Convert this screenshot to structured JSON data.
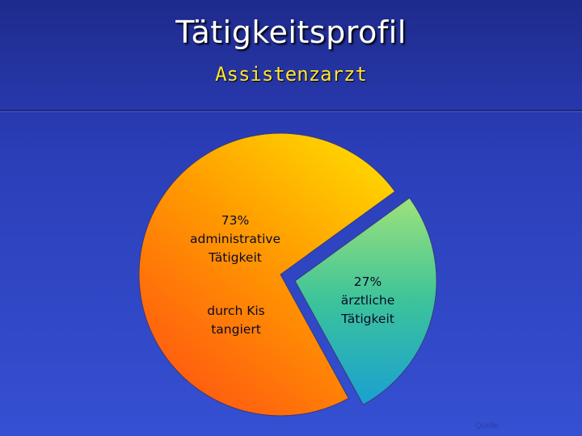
{
  "title": "Tätigkeitsprofil",
  "subtitle": "Assistenzarzt",
  "source": "Quelle",
  "chart_data": {
    "type": "pie",
    "slices": [
      {
        "label_lines": [
          "73%",
          "administrative",
          "Tätigkeit"
        ],
        "value": 73,
        "percent": "73%",
        "color": "#ff8f00"
      },
      {
        "label_lines": [
          "27%",
          "ärztliche",
          "Tätigkeit"
        ],
        "value": 27,
        "percent": "27%",
        "color": "#2cb8a2",
        "exploded": true
      }
    ],
    "annotation_lines": [
      "durch Kis",
      "tangiert"
    ],
    "colors": {
      "orange_light": "#ffd400",
      "orange_dark": "#ff5a10",
      "teal_light": "#9ee27a",
      "teal_dark": "#1aa0d2"
    }
  }
}
